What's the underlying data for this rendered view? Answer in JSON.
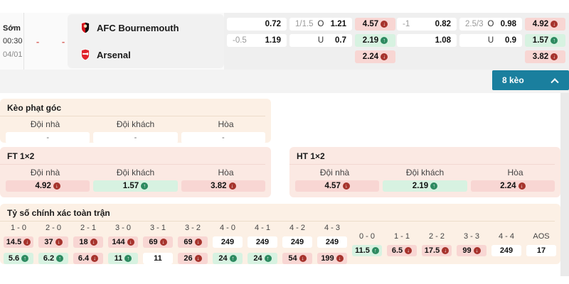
{
  "match": {
    "time_label": "Sớm",
    "time": "00:30",
    "date": "04/01",
    "home_score": "-",
    "away_score": "-",
    "teams": [
      {
        "name": "AFC Bournemouth"
      },
      {
        "name": "Arsenal"
      }
    ]
  },
  "odds_groups": [
    {
      "handicap": {
        "rows": [
          {
            "line": "",
            "odd": "0.72"
          },
          {
            "line": "-0.5",
            "odd": "1.19"
          }
        ]
      },
      "total": {
        "rows": [
          {
            "line": "1/1.5",
            "side": "O",
            "odd": "1.21"
          },
          {
            "line": "",
            "side": "U",
            "odd": "0.7"
          }
        ]
      },
      "one_x_two": [
        {
          "value": "4.57",
          "trend": "down"
        },
        {
          "value": "2.19",
          "trend": "up"
        },
        {
          "value": "2.24",
          "trend": "down"
        }
      ]
    },
    {
      "handicap": {
        "rows": [
          {
            "line": "-1",
            "odd": "0.82"
          },
          {
            "line": "",
            "odd": "1.08"
          }
        ]
      },
      "total": {
        "rows": [
          {
            "line": "2.5/3",
            "side": "O",
            "odd": "0.98"
          },
          {
            "line": "",
            "side": "U",
            "odd": "0.9"
          }
        ]
      },
      "one_x_two": [
        {
          "value": "4.92",
          "trend": "down"
        },
        {
          "value": "1.57",
          "trend": "up"
        },
        {
          "value": "3.82",
          "trend": "down"
        }
      ]
    }
  ],
  "more_markets_button": {
    "label": "8 kèo"
  },
  "sections": {
    "corner_odds": {
      "title": "Kèo phạt góc",
      "headers": [
        "Đội nhà",
        "Đội khách",
        "Hòa"
      ],
      "values": [
        "-",
        "-",
        "-"
      ]
    },
    "ft_1x2": {
      "title": "FT 1×2",
      "headers": [
        "Đội nhà",
        "Đội khách",
        "Hòa"
      ],
      "cells": [
        {
          "value": "4.92",
          "trend": "down"
        },
        {
          "value": "1.57",
          "trend": "up"
        },
        {
          "value": "3.82",
          "trend": "down"
        }
      ]
    },
    "ht_1x2": {
      "title": "HT 1×2",
      "headers": [
        "Đội nhà",
        "Đội khách",
        "Hòa"
      ],
      "cells": [
        {
          "value": "4.57",
          "trend": "down"
        },
        {
          "value": "2.19",
          "trend": "up"
        },
        {
          "value": "2.24",
          "trend": "down"
        }
      ]
    },
    "correct_score": {
      "title": "Tỷ số chính xác toàn trận",
      "main_columns": [
        {
          "score": "1 - 0",
          "top": {
            "value": "14.5",
            "trend": "down"
          },
          "bottom": {
            "value": "5.6",
            "trend": "up"
          }
        },
        {
          "score": "2 - 0",
          "top": {
            "value": "37",
            "trend": "down"
          },
          "bottom": {
            "value": "6.2",
            "trend": "up"
          }
        },
        {
          "score": "2 - 1",
          "top": {
            "value": "18",
            "trend": "down"
          },
          "bottom": {
            "value": "6.4",
            "trend": "down"
          }
        },
        {
          "score": "3 - 0",
          "top": {
            "value": "144",
            "trend": "down"
          },
          "bottom": {
            "value": "11",
            "trend": "up"
          }
        },
        {
          "score": "3 - 1",
          "top": {
            "value": "69",
            "trend": "down"
          },
          "bottom": {
            "value": "11",
            "trend": "none"
          }
        },
        {
          "score": "3 - 2",
          "top": {
            "value": "69",
            "trend": "down"
          },
          "bottom": {
            "value": "26",
            "trend": "down"
          }
        },
        {
          "score": "4 - 0",
          "top": {
            "value": "249",
            "trend": "none"
          },
          "bottom": {
            "value": "24",
            "trend": "up"
          }
        },
        {
          "score": "4 - 1",
          "top": {
            "value": "249",
            "trend": "none"
          },
          "bottom": {
            "value": "24",
            "trend": "up"
          }
        },
        {
          "score": "4 - 2",
          "top": {
            "value": "249",
            "trend": "none"
          },
          "bottom": {
            "value": "54",
            "trend": "down"
          }
        },
        {
          "score": "4 - 3",
          "top": {
            "value": "249",
            "trend": "none"
          },
          "bottom": {
            "value": "199",
            "trend": "down"
          }
        }
      ],
      "draw_columns": [
        {
          "score": "0 - 0",
          "cell": {
            "value": "11.5",
            "trend": "up"
          }
        },
        {
          "score": "1 - 1",
          "cell": {
            "value": "6.5",
            "trend": "down"
          }
        },
        {
          "score": "2 - 2",
          "cell": {
            "value": "17.5",
            "trend": "down"
          }
        },
        {
          "score": "3 - 3",
          "cell": {
            "value": "99",
            "trend": "down"
          }
        },
        {
          "score": "4 - 4",
          "cell": {
            "value": "249",
            "trend": "none"
          }
        },
        {
          "score": "AOS",
          "cell": {
            "value": "17",
            "trend": "none"
          }
        }
      ]
    }
  },
  "colors": {
    "accent_button": "#1a7f9e",
    "trend_down_bg": "#f8d6d3",
    "trend_up_bg": "#d7f2e1",
    "trend_down_icon": "#a6332c",
    "trend_up_icon": "#2d8a60",
    "section_peach": "#fcf0e5",
    "section_pink": "#fbe9e3",
    "bournemouth_red": "#d3151c",
    "arsenal_red": "#e0242c"
  }
}
